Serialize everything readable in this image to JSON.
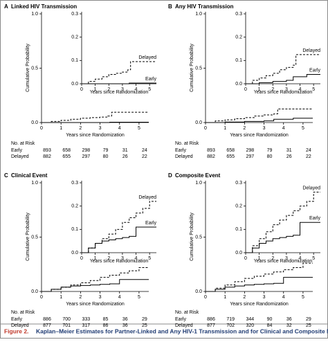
{
  "caption_label": "Figure 2.",
  "caption_text": "Kaplan–Meier Estimates for Partner-Linked and Any HIV-1 Transmission and for Clinical and Composite Monitoring Events.",
  "chart_data": [
    {
      "type": "step",
      "panel": "A",
      "title": "Linked HIV Transmission",
      "xlabel": "Years since Randomization",
      "ylabel": "Cumulative Probability",
      "xlim": [
        0,
        5.5
      ],
      "xticks": [
        0,
        1,
        2,
        3,
        4,
        5
      ],
      "ylim": [
        0,
        1.0
      ],
      "yticks": [
        {
          "value": 0,
          "label": "0.0"
        },
        {
          "value": 0.5,
          "label": "0.5"
        },
        {
          "value": 1.0,
          "label": "1.0"
        }
      ],
      "inset_ylim": [
        0,
        0.3
      ],
      "inset_yticks": [
        {
          "value": 0,
          "label": "0.0"
        },
        {
          "value": 0.1,
          "label": "0.1"
        },
        {
          "value": 0.2,
          "label": "0.2"
        },
        {
          "value": 0.3,
          "label": "0.3"
        }
      ],
      "series": [
        {
          "name": "Early",
          "color": "#000000",
          "style": "solid",
          "x": [
            0,
            3.5,
            5.5
          ],
          "values": [
            0,
            0.003,
            0.003
          ]
        },
        {
          "name": "Delayed",
          "color": "#000000",
          "style": "dashed",
          "x": [
            0,
            0.5,
            1,
            1.5,
            2,
            2.5,
            3,
            3.4,
            3.6,
            5.5
          ],
          "values": [
            0,
            0.01,
            0.02,
            0.03,
            0.04,
            0.045,
            0.05,
            0.06,
            0.095,
            0.095
          ]
        }
      ],
      "risk_table": {
        "title": "No. at Risk",
        "rows": [
          [
            893,
            658,
            298,
            79,
            31,
            24
          ],
          [
            882,
            655,
            297,
            80,
            26,
            22
          ]
        ]
      }
    },
    {
      "type": "step",
      "panel": "B",
      "title": "Any HIV Transmission",
      "xlabel": "Years since Randomization",
      "ylabel": "Cumulative Probability",
      "xlim": [
        0,
        5.5
      ],
      "xticks": [
        0,
        1,
        2,
        3,
        4,
        5
      ],
      "ylim": [
        0,
        1.0
      ],
      "yticks": [
        {
          "value": 0,
          "label": "0.0"
        },
        {
          "value": 0.5,
          "label": "0.5"
        },
        {
          "value": 1.0,
          "label": "1.0"
        }
      ],
      "inset_ylim": [
        0,
        0.3
      ],
      "inset_yticks": [
        {
          "value": 0,
          "label": "0.0"
        },
        {
          "value": 0.1,
          "label": "0.1"
        },
        {
          "value": 0.2,
          "label": "0.2"
        },
        {
          "value": 0.3,
          "label": "0.3"
        }
      ],
      "series": [
        {
          "name": "Early",
          "color": "#000000",
          "style": "solid",
          "x": [
            0,
            1,
            2,
            3,
            3.5,
            4.5,
            5.5
          ],
          "values": [
            0,
            0.005,
            0.01,
            0.015,
            0.03,
            0.04,
            0.04
          ]
        },
        {
          "name": "Delayed",
          "color": "#000000",
          "style": "dashed",
          "x": [
            0,
            0.5,
            1,
            1.5,
            2,
            2.5,
            3,
            3.5,
            3.7,
            5.5
          ],
          "values": [
            0,
            0.015,
            0.025,
            0.035,
            0.045,
            0.06,
            0.07,
            0.08,
            0.125,
            0.125
          ]
        }
      ],
      "risk_table": {
        "title": "No. at Risk",
        "rows": [
          [
            893,
            658,
            298,
            79,
            31,
            24
          ],
          [
            882,
            655,
            297,
            80,
            26,
            22
          ]
        ]
      }
    },
    {
      "type": "step",
      "panel": "C",
      "title": "Clinical Event",
      "xlabel": "Years since Randomization",
      "ylabel": "Cumulative Probability",
      "xlim": [
        0,
        5.5
      ],
      "xticks": [
        0,
        1,
        2,
        3,
        4,
        5
      ],
      "ylim": [
        0,
        1.0
      ],
      "yticks": [
        {
          "value": 0,
          "label": "0.0"
        },
        {
          "value": 0.5,
          "label": "0.5"
        },
        {
          "value": 1.0,
          "label": "1.0"
        }
      ],
      "inset_ylim": [
        0,
        0.3
      ],
      "inset_yticks": [
        {
          "value": 0,
          "label": "0.0"
        },
        {
          "value": 0.1,
          "label": "0.1"
        },
        {
          "value": 0.2,
          "label": "0.2"
        },
        {
          "value": 0.3,
          "label": "0.3"
        }
      ],
      "series": [
        {
          "name": "Early",
          "color": "#000000",
          "style": "solid",
          "x": [
            0,
            0.5,
            1,
            1.5,
            2,
            2.5,
            3,
            3.5,
            4,
            5.5
          ],
          "values": [
            0,
            0.02,
            0.04,
            0.05,
            0.055,
            0.06,
            0.065,
            0.07,
            0.11,
            0.11
          ]
        },
        {
          "name": "Delayed",
          "color": "#000000",
          "style": "dashed",
          "x": [
            0,
            0.5,
            1,
            1.5,
            2,
            2.5,
            3,
            3.5,
            4,
            4.5,
            5,
            5.5
          ],
          "values": [
            0,
            0.02,
            0.04,
            0.06,
            0.08,
            0.1,
            0.13,
            0.15,
            0.17,
            0.19,
            0.22,
            0.22
          ]
        }
      ],
      "risk_table": {
        "title": "No. at Risk",
        "rows": [
          [
            886,
            700,
            333,
            85,
            36,
            29
          ],
          [
            877,
            701,
            317,
            86,
            36,
            25
          ]
        ]
      }
    },
    {
      "type": "step",
      "panel": "D",
      "title": "Composite Event",
      "xlabel": "Years since Randomization",
      "ylabel": "Cumulative Probability",
      "xlim": [
        0,
        5.5
      ],
      "xticks": [
        0,
        1,
        2,
        3,
        4,
        5
      ],
      "ylim": [
        0,
        1.0
      ],
      "yticks": [
        {
          "value": 0,
          "label": "0.0"
        },
        {
          "value": 0.5,
          "label": "0.5"
        },
        {
          "value": 1.0,
          "label": "1.0"
        }
      ],
      "inset_ylim": [
        0,
        0.3
      ],
      "inset_yticks": [
        {
          "value": 0,
          "label": "0.0"
        },
        {
          "value": 0.1,
          "label": "0.1"
        },
        {
          "value": 0.2,
          "label": "0.2"
        },
        {
          "value": 0.3,
          "label": "0.3"
        }
      ],
      "series": [
        {
          "name": "Early",
          "color": "#000000",
          "style": "solid",
          "x": [
            0,
            0.5,
            1,
            1.5,
            2,
            2.5,
            3,
            3.5,
            4,
            5.5
          ],
          "values": [
            0,
            0.02,
            0.04,
            0.05,
            0.06,
            0.065,
            0.07,
            0.075,
            0.13,
            0.13
          ]
        },
        {
          "name": "Delayed",
          "color": "#000000",
          "style": "dashed",
          "x": [
            0,
            0.5,
            1,
            1.5,
            2,
            2.5,
            3,
            3.5,
            4,
            4.5,
            5,
            5.5
          ],
          "values": [
            0,
            0.03,
            0.06,
            0.09,
            0.12,
            0.14,
            0.16,
            0.18,
            0.2,
            0.22,
            0.26,
            0.26
          ]
        }
      ],
      "risk_table": {
        "title": "No. at Risk",
        "rows": [
          [
            886,
            719,
            344,
            90,
            36,
            29
          ],
          [
            877,
            702,
            320,
            84,
            32,
            25
          ]
        ]
      }
    }
  ]
}
